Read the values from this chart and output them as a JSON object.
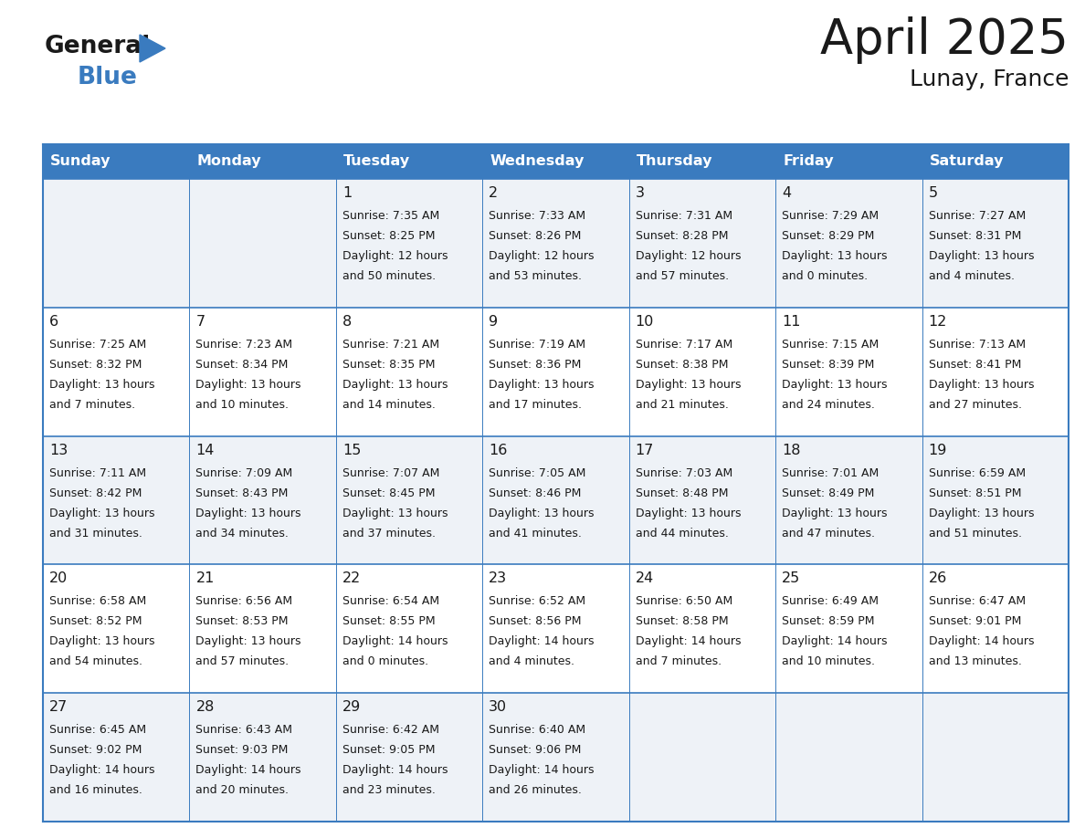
{
  "title": "April 2025",
  "subtitle": "Lunay, France",
  "header_bg": "#3a7bbf",
  "header_text_color": "#ffffff",
  "cell_bg_light": "#eef2f7",
  "cell_bg_white": "#ffffff",
  "text_color": "#1a1a1a",
  "logo_general_color": "#1a1a1a",
  "logo_blue_color": "#3a7bbf",
  "logo_triangle_color": "#3a7bbf",
  "day_headers": [
    "Sunday",
    "Monday",
    "Tuesday",
    "Wednesday",
    "Thursday",
    "Friday",
    "Saturday"
  ],
  "weeks": [
    [
      {
        "day": null,
        "info": ""
      },
      {
        "day": null,
        "info": ""
      },
      {
        "day": 1,
        "info": "Sunrise: 7:35 AM\nSunset: 8:25 PM\nDaylight: 12 hours\nand 50 minutes."
      },
      {
        "day": 2,
        "info": "Sunrise: 7:33 AM\nSunset: 8:26 PM\nDaylight: 12 hours\nand 53 minutes."
      },
      {
        "day": 3,
        "info": "Sunrise: 7:31 AM\nSunset: 8:28 PM\nDaylight: 12 hours\nand 57 minutes."
      },
      {
        "day": 4,
        "info": "Sunrise: 7:29 AM\nSunset: 8:29 PM\nDaylight: 13 hours\nand 0 minutes."
      },
      {
        "day": 5,
        "info": "Sunrise: 7:27 AM\nSunset: 8:31 PM\nDaylight: 13 hours\nand 4 minutes."
      }
    ],
    [
      {
        "day": 6,
        "info": "Sunrise: 7:25 AM\nSunset: 8:32 PM\nDaylight: 13 hours\nand 7 minutes."
      },
      {
        "day": 7,
        "info": "Sunrise: 7:23 AM\nSunset: 8:34 PM\nDaylight: 13 hours\nand 10 minutes."
      },
      {
        "day": 8,
        "info": "Sunrise: 7:21 AM\nSunset: 8:35 PM\nDaylight: 13 hours\nand 14 minutes."
      },
      {
        "day": 9,
        "info": "Sunrise: 7:19 AM\nSunset: 8:36 PM\nDaylight: 13 hours\nand 17 minutes."
      },
      {
        "day": 10,
        "info": "Sunrise: 7:17 AM\nSunset: 8:38 PM\nDaylight: 13 hours\nand 21 minutes."
      },
      {
        "day": 11,
        "info": "Sunrise: 7:15 AM\nSunset: 8:39 PM\nDaylight: 13 hours\nand 24 minutes."
      },
      {
        "day": 12,
        "info": "Sunrise: 7:13 AM\nSunset: 8:41 PM\nDaylight: 13 hours\nand 27 minutes."
      }
    ],
    [
      {
        "day": 13,
        "info": "Sunrise: 7:11 AM\nSunset: 8:42 PM\nDaylight: 13 hours\nand 31 minutes."
      },
      {
        "day": 14,
        "info": "Sunrise: 7:09 AM\nSunset: 8:43 PM\nDaylight: 13 hours\nand 34 minutes."
      },
      {
        "day": 15,
        "info": "Sunrise: 7:07 AM\nSunset: 8:45 PM\nDaylight: 13 hours\nand 37 minutes."
      },
      {
        "day": 16,
        "info": "Sunrise: 7:05 AM\nSunset: 8:46 PM\nDaylight: 13 hours\nand 41 minutes."
      },
      {
        "day": 17,
        "info": "Sunrise: 7:03 AM\nSunset: 8:48 PM\nDaylight: 13 hours\nand 44 minutes."
      },
      {
        "day": 18,
        "info": "Sunrise: 7:01 AM\nSunset: 8:49 PM\nDaylight: 13 hours\nand 47 minutes."
      },
      {
        "day": 19,
        "info": "Sunrise: 6:59 AM\nSunset: 8:51 PM\nDaylight: 13 hours\nand 51 minutes."
      }
    ],
    [
      {
        "day": 20,
        "info": "Sunrise: 6:58 AM\nSunset: 8:52 PM\nDaylight: 13 hours\nand 54 minutes."
      },
      {
        "day": 21,
        "info": "Sunrise: 6:56 AM\nSunset: 8:53 PM\nDaylight: 13 hours\nand 57 minutes."
      },
      {
        "day": 22,
        "info": "Sunrise: 6:54 AM\nSunset: 8:55 PM\nDaylight: 14 hours\nand 0 minutes."
      },
      {
        "day": 23,
        "info": "Sunrise: 6:52 AM\nSunset: 8:56 PM\nDaylight: 14 hours\nand 4 minutes."
      },
      {
        "day": 24,
        "info": "Sunrise: 6:50 AM\nSunset: 8:58 PM\nDaylight: 14 hours\nand 7 minutes."
      },
      {
        "day": 25,
        "info": "Sunrise: 6:49 AM\nSunset: 8:59 PM\nDaylight: 14 hours\nand 10 minutes."
      },
      {
        "day": 26,
        "info": "Sunrise: 6:47 AM\nSunset: 9:01 PM\nDaylight: 14 hours\nand 13 minutes."
      }
    ],
    [
      {
        "day": 27,
        "info": "Sunrise: 6:45 AM\nSunset: 9:02 PM\nDaylight: 14 hours\nand 16 minutes."
      },
      {
        "day": 28,
        "info": "Sunrise: 6:43 AM\nSunset: 9:03 PM\nDaylight: 14 hours\nand 20 minutes."
      },
      {
        "day": 29,
        "info": "Sunrise: 6:42 AM\nSunset: 9:05 PM\nDaylight: 14 hours\nand 23 minutes."
      },
      {
        "day": 30,
        "info": "Sunrise: 6:40 AM\nSunset: 9:06 PM\nDaylight: 14 hours\nand 26 minutes."
      },
      {
        "day": null,
        "info": ""
      },
      {
        "day": null,
        "info": ""
      },
      {
        "day": null,
        "info": ""
      }
    ]
  ]
}
